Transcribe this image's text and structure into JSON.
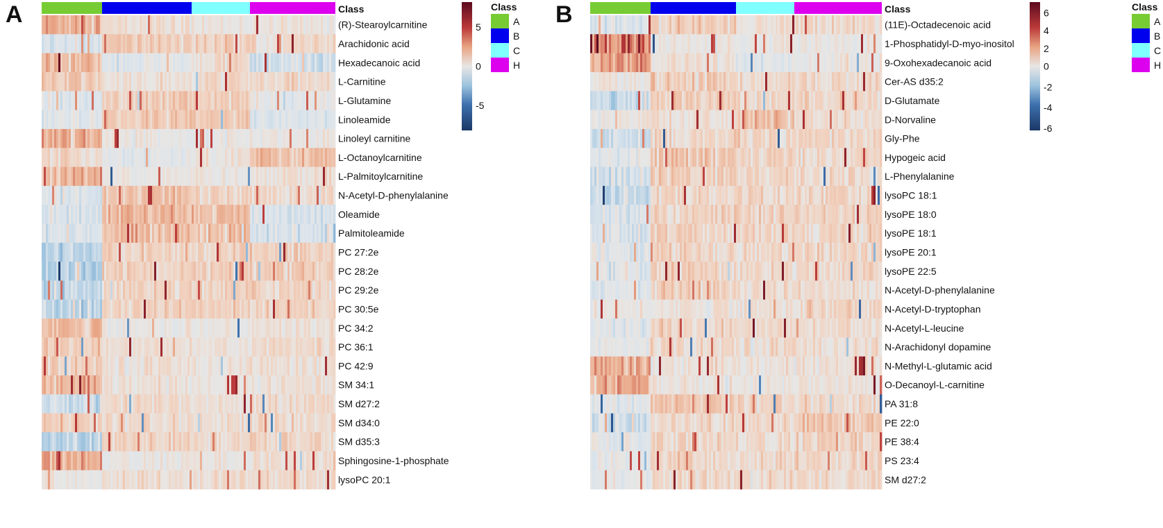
{
  "chart_data": [
    {
      "type": "heatmap",
      "panel_label": "A",
      "annotation_title": "Class",
      "classes": [
        "A",
        "B",
        "C",
        "H"
      ],
      "class_colors": {
        "A": "#77cc33",
        "B": "#0000ee",
        "C": "#80ffff",
        "H": "#dd00ee"
      },
      "n_samples_per_class": [
        29,
        43,
        28,
        41
      ],
      "colorbar": {
        "range": [
          -8.2,
          8.2
        ],
        "ticks": [
          "5",
          "0",
          "-5"
        ],
        "tick_values": [
          5,
          0,
          -5
        ]
      },
      "rows": [
        "(R)-Stearoylcarnitine",
        "Arachidonic acid",
        "Hexadecanoic acid",
        "L-Carnitine",
        "L-Glutamine",
        "Linoleamide",
        "Linoleyl carnitine",
        "L-Octanoylcarnitine",
        "L-Palmitoylcarnitine",
        "N-Acetyl-D-phenylalanine",
        "Oleamide",
        "Palmitoleamide",
        "PC 27:2e",
        "PC 28:2e",
        "PC 29:2e",
        "PC 30:5e",
        "PC 34:2",
        "PC 36:1",
        "PC 42:9",
        "SM 34:1",
        "SM d27:2",
        "SM d34:0",
        "SM d35:3",
        "Sphingosine-1-phosphate",
        "lysoPC 20:1"
      ],
      "row_class_means": [
        [
          2.2,
          0.3,
          0.1,
          0.1
        ],
        [
          -0.6,
          1.0,
          0.8,
          0.5
        ],
        [
          1.5,
          -0.4,
          0.5,
          -1.0
        ],
        [
          1.0,
          0.2,
          0.5,
          0.5
        ],
        [
          -0.5,
          1.0,
          1.0,
          -0.3
        ],
        [
          -0.5,
          1.0,
          1.0,
          -0.5
        ],
        [
          2.2,
          0.0,
          0.0,
          0.0
        ],
        [
          0.5,
          -0.3,
          0.3,
          1.4
        ],
        [
          2.0,
          0.0,
          0.0,
          0.3
        ],
        [
          -0.5,
          1.5,
          0.8,
          0.5
        ],
        [
          -0.7,
          1.6,
          1.5,
          -0.7
        ],
        [
          -0.7,
          1.6,
          1.5,
          -0.7
        ],
        [
          -1.6,
          0.8,
          0.8,
          0.8
        ],
        [
          -1.6,
          0.8,
          0.8,
          0.8
        ],
        [
          -1.6,
          0.8,
          0.8,
          0.8
        ],
        [
          -1.6,
          0.8,
          0.8,
          0.8
        ],
        [
          1.6,
          0.0,
          0.0,
          0.2
        ],
        [
          1.1,
          0.3,
          0.2,
          0.5
        ],
        [
          1.0,
          0.3,
          0.3,
          0.3
        ],
        [
          1.5,
          0.2,
          0.0,
          0.3
        ],
        [
          -1.0,
          0.5,
          0.3,
          0.5
        ],
        [
          0.8,
          0.5,
          0.5,
          0.5
        ],
        [
          -1.5,
          0.7,
          0.5,
          0.7
        ],
        [
          2.1,
          0.0,
          0.0,
          0.3
        ],
        [
          0.0,
          0.3,
          0.5,
          0.5
        ]
      ]
    },
    {
      "type": "heatmap",
      "panel_label": "B",
      "annotation_title": "Class",
      "classes": [
        "A",
        "B",
        "C",
        "H"
      ],
      "class_colors": {
        "A": "#77cc33",
        "B": "#0000ee",
        "C": "#80ffff",
        "H": "#dd00ee"
      },
      "n_samples_per_class": [
        29,
        41,
        28,
        42
      ],
      "colorbar": {
        "range": [
          -6.2,
          7.2
        ],
        "ticks": [
          "6",
          "4",
          "2",
          "0",
          "-2",
          "-4",
          "-6"
        ],
        "tick_values": [
          6,
          4,
          2,
          0,
          -2,
          -4,
          -6
        ]
      },
      "rows": [
        "(11E)-Octadecenoic acid",
        "1-Phosphatidyl-D-myo-inositol",
        "9-Oxohexadecanoic acid",
        "Cer-AS d35:2",
        "D-Glutamate",
        "D-Norvaline",
        "Gly-Phe",
        "Hypogeic acid",
        "L-Phenylalanine",
        "lysoPC 18:1",
        "lysoPE 18:0",
        "lysoPE 18:1",
        "lysoPE 20:1",
        "lysoPE 22:5",
        "N-Acetyl-D-phenylalanine",
        "N-Acetyl-D-tryptophan",
        "N-Acetyl-L-leucine",
        "N-Arachidonyl dopamine",
        "N-Methyl-L-glutamic acid",
        "O-Decanoyl-L-carnitine",
        "PA 31:8",
        "PE 22:0",
        "PE 38:4",
        "PS 23:4",
        "SM d27:2"
      ],
      "row_class_means": [
        [
          -0.5,
          0.8,
          0.3,
          0.5
        ],
        [
          3.0,
          0.0,
          0.0,
          0.0
        ],
        [
          2.5,
          0.2,
          -0.3,
          0.0
        ],
        [
          0.0,
          0.8,
          0.5,
          0.5
        ],
        [
          -1.0,
          0.8,
          0.5,
          0.5
        ],
        [
          0.0,
          0.3,
          1.2,
          0.3
        ],
        [
          -1.0,
          0.5,
          0.5,
          0.5
        ],
        [
          -0.3,
          1.0,
          0.5,
          0.5
        ],
        [
          -0.8,
          0.8,
          0.5,
          0.5
        ],
        [
          -1.0,
          0.5,
          0.5,
          0.5
        ],
        [
          -0.6,
          0.7,
          0.6,
          0.6
        ],
        [
          -0.6,
          0.6,
          0.6,
          0.6
        ],
        [
          -0.4,
          0.6,
          0.5,
          0.6
        ],
        [
          -0.5,
          0.6,
          0.5,
          0.5
        ],
        [
          -0.3,
          0.8,
          0.4,
          0.3
        ],
        [
          0.0,
          0.2,
          0.3,
          0.6
        ],
        [
          -0.4,
          0.6,
          0.4,
          0.4
        ],
        [
          -0.2,
          0.5,
          0.4,
          0.4
        ],
        [
          1.8,
          0.1,
          0.1,
          0.2
        ],
        [
          2.0,
          0.1,
          0.0,
          0.2
        ],
        [
          -0.3,
          1.0,
          0.6,
          0.6
        ],
        [
          -0.8,
          0.5,
          0.4,
          1.0
        ],
        [
          -0.3,
          0.6,
          0.4,
          0.6
        ],
        [
          -0.2,
          0.5,
          0.4,
          0.6
        ],
        [
          -0.2,
          0.5,
          0.4,
          0.5
        ]
      ]
    }
  ]
}
